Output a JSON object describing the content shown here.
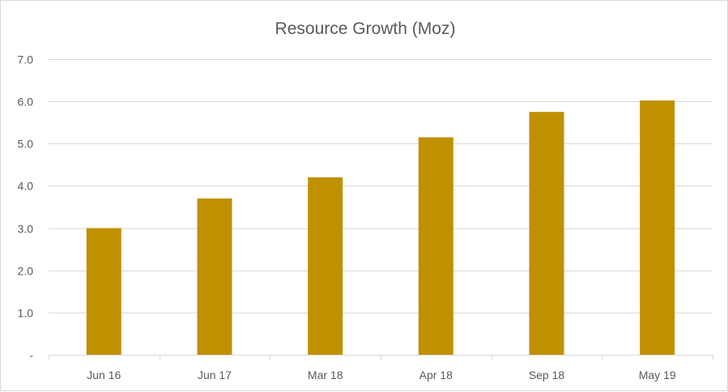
{
  "chart_data": {
    "type": "bar",
    "title": "Resource Growth (Moz)",
    "categories": [
      "Jun 16",
      "Jun 17",
      "Mar 18",
      "Apr 18",
      "Sep 18",
      "May 19"
    ],
    "values": [
      3.0,
      3.7,
      4.2,
      5.15,
      5.75,
      6.02
    ],
    "xlabel": "",
    "ylabel": "",
    "ylim": [
      0,
      7
    ],
    "y_ticks": [
      0,
      1,
      2,
      3,
      4,
      5,
      6,
      7
    ],
    "y_tick_labels": [
      "-",
      "1.0",
      "2.0",
      "3.0",
      "4.0",
      "5.0",
      "6.0",
      "7.0"
    ],
    "grid": true,
    "legend": "none",
    "bar_color": "#bf9000",
    "grid_color": "#d9d9d9",
    "text_color": "#595959"
  }
}
